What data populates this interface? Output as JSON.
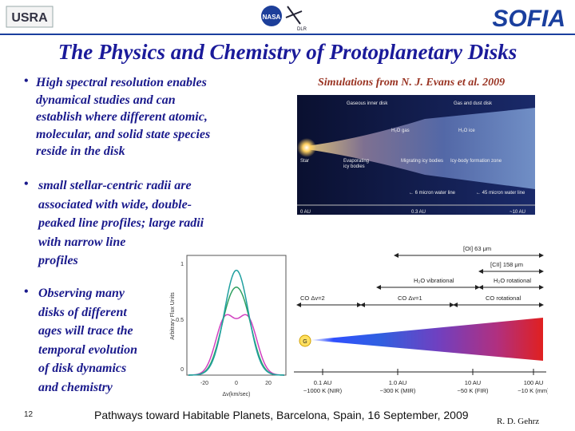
{
  "header": {
    "left_logo": "USRA",
    "center_logo_1": "NASA",
    "center_logo_2": "DLR",
    "right_logo": "SOFIA"
  },
  "title": "The Physics and Chemistry of Protoplanetary Disks",
  "bullets": [
    {
      "lines": [
        "High spectral resolution enables",
        "dynamical studies and can",
        "establish where different atomic,",
        "molecular, and solid state species",
        "reside in the disk"
      ]
    },
    {
      "lines": [
        "small stellar-centric radii are",
        "associated with  wide, double-",
        "peaked line profiles; large radii",
        "with narrow line",
        "profiles"
      ]
    },
    {
      "lines": [
        "Observing  many",
        "disks of different",
        "ages  will trace the",
        "temporal evolution",
        "of disk dynamics",
        "and chemistry"
      ]
    }
  ],
  "simulation": {
    "caption": "Simulations from N. J. Evans et al. 2009",
    "labels": [
      "Gaseous inner disk",
      "Gas and dust disk",
      "H₂O gas",
      "H₂O ice",
      "Star",
      "Evaporating",
      "icy bodies",
      "Migrating icy bodies",
      "Icy-body formation zone",
      "← 6 micron water line",
      "← 45 micron water line"
    ],
    "axis": [
      "0 AU",
      "0.3 AU",
      "~10 AU"
    ]
  },
  "profile_plot": {
    "y_label": "Arbitrary Flux Units",
    "x_label": "Δv(km/sec)",
    "yticks": [
      "1",
      "0.5",
      "0"
    ],
    "xticks": [
      "-20",
      "0",
      "20"
    ]
  },
  "spectrum": {
    "lines": [
      "[OI] 63 μm",
      "[CII] 158 μm",
      "H₂O vibrational",
      "H₂O rotational",
      "CO Δv=2",
      "CO Δv=1",
      "CO rotational"
    ],
    "star": "G",
    "distances": [
      "0.1 AU",
      "1.0 AU",
      "10 AU",
      "100 AU"
    ],
    "temperatures": [
      "~1000 K (NIR)",
      "~300 K (MIR)",
      "~50 K (FIR)",
      "~10 K (mm)"
    ]
  },
  "footer": {
    "page": "12",
    "text": "Pathways toward Habitable Planets, Barcelona, Spain, 16 September, 2009",
    "author": "R. D. Gehrz"
  }
}
